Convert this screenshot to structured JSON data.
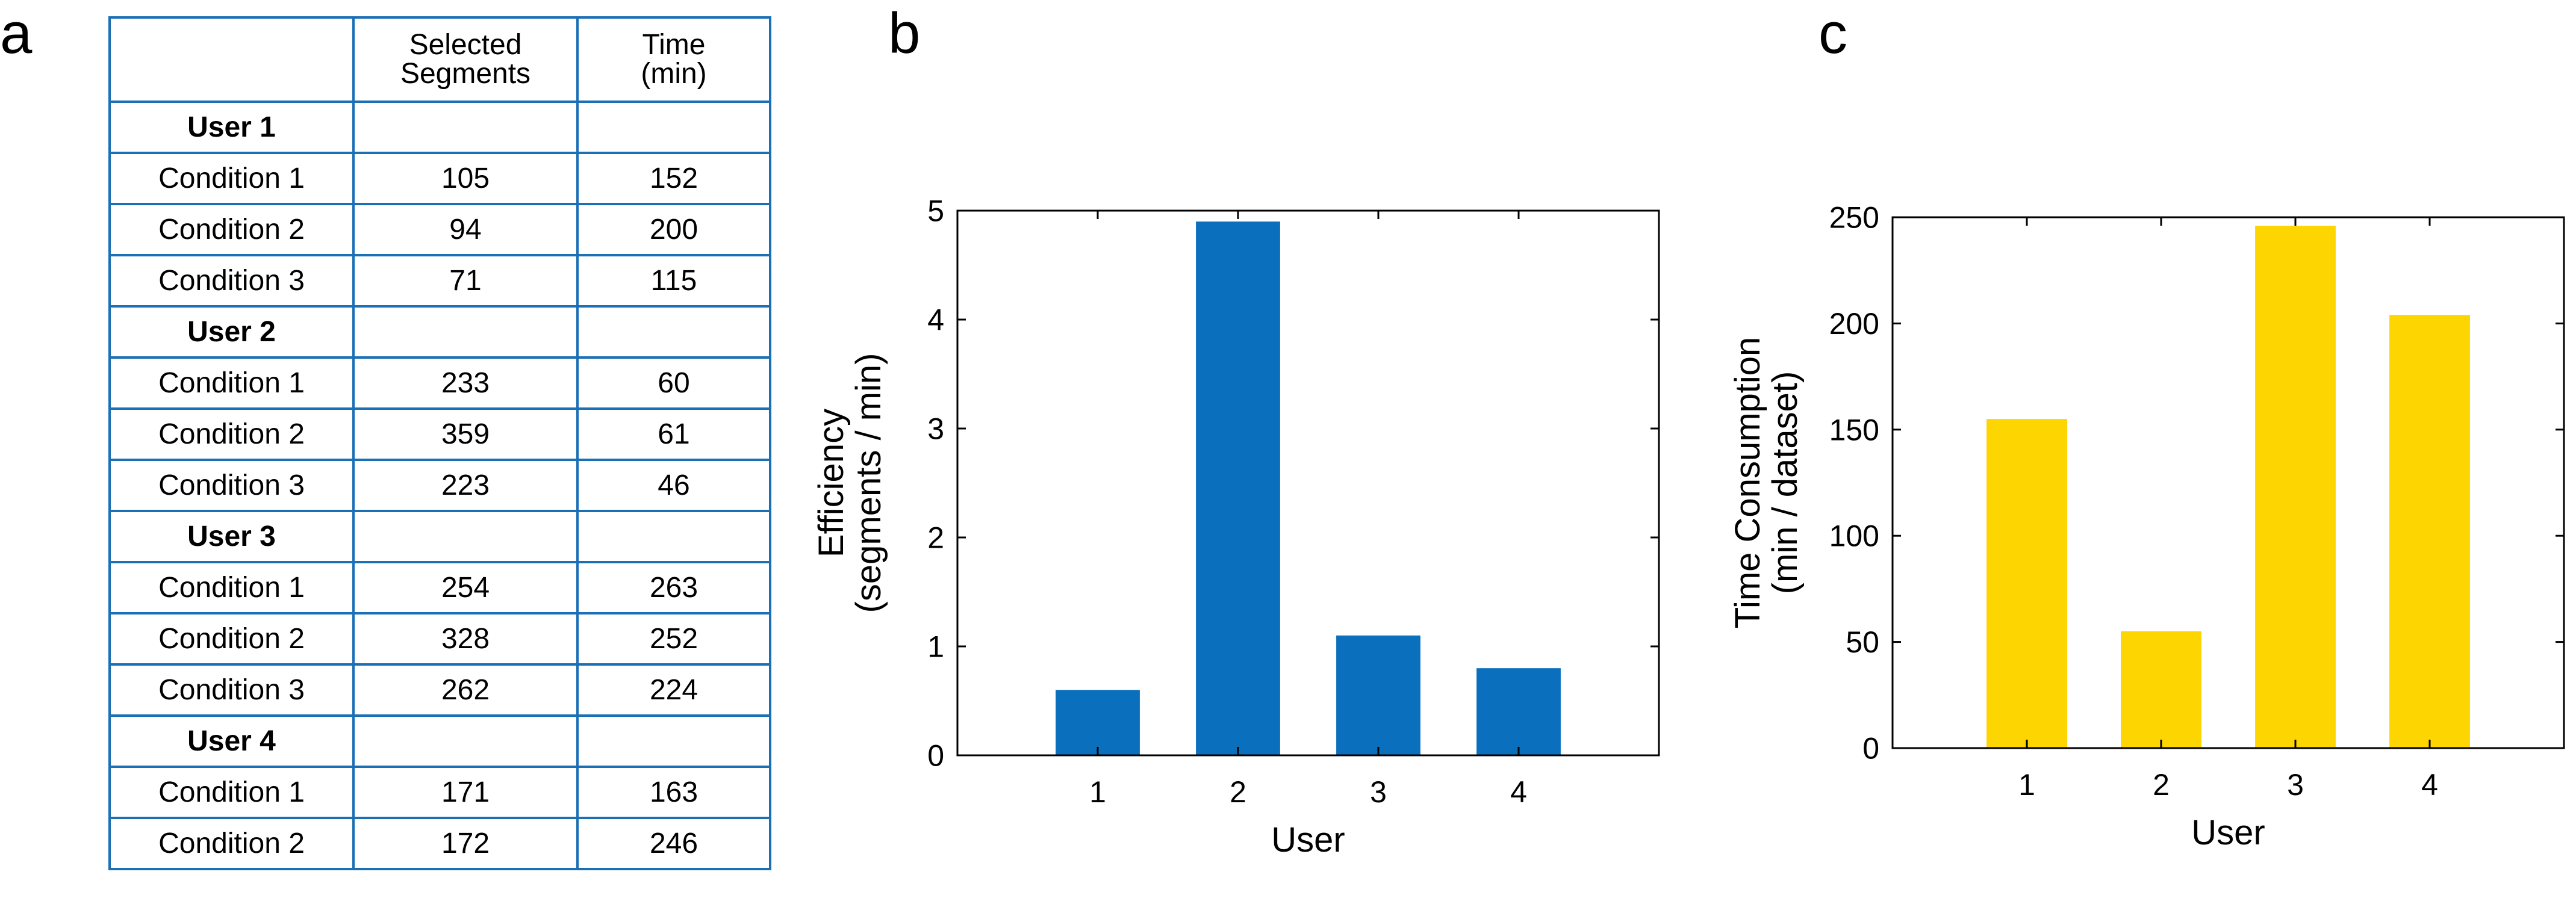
{
  "panels": {
    "a": "a",
    "b": "b",
    "c": "c"
  },
  "colors": {
    "table_border": "#1a6fb5",
    "efficiency_bar": "#0a6fbd",
    "time_bar": "#fdd500"
  },
  "table": {
    "headers": [
      "",
      "Selected\nSegments",
      "Time\n(min)"
    ],
    "rows": [
      {
        "type": "user",
        "cells": [
          "User 1",
          "",
          ""
        ]
      },
      {
        "type": "condition",
        "cells": [
          "Condition 1",
          "105",
          "152"
        ]
      },
      {
        "type": "condition",
        "cells": [
          "Condition 2",
          "94",
          "200"
        ]
      },
      {
        "type": "condition",
        "cells": [
          "Condition 3",
          "71",
          "115"
        ]
      },
      {
        "type": "user",
        "cells": [
          "User 2",
          "",
          ""
        ]
      },
      {
        "type": "condition",
        "cells": [
          "Condition 1",
          "233",
          "60"
        ]
      },
      {
        "type": "condition",
        "cells": [
          "Condition 2",
          "359",
          "61"
        ]
      },
      {
        "type": "condition",
        "cells": [
          "Condition 3",
          "223",
          "46"
        ]
      },
      {
        "type": "user",
        "cells": [
          "User 3",
          "",
          ""
        ]
      },
      {
        "type": "condition",
        "cells": [
          "Condition 1",
          "254",
          "263"
        ]
      },
      {
        "type": "condition",
        "cells": [
          "Condition 2",
          "328",
          "252"
        ]
      },
      {
        "type": "condition",
        "cells": [
          "Condition 3",
          "262",
          "224"
        ]
      },
      {
        "type": "user",
        "cells": [
          "User 4",
          "",
          ""
        ]
      },
      {
        "type": "condition",
        "cells": [
          "Condition 1",
          "171",
          "163"
        ]
      },
      {
        "type": "condition",
        "cells": [
          "Condition 2",
          "172",
          "246"
        ]
      }
    ]
  },
  "chart_data": [
    {
      "type": "table",
      "columns": [
        "",
        "Selected Segments",
        "Time (min)"
      ],
      "rows": [
        [
          "User 1",
          "",
          ""
        ],
        [
          "Condition 1",
          105,
          152
        ],
        [
          "Condition 2",
          94,
          200
        ],
        [
          "Condition 3",
          71,
          115
        ],
        [
          "User 2",
          "",
          ""
        ],
        [
          "Condition 1",
          233,
          60
        ],
        [
          "Condition 2",
          359,
          61
        ],
        [
          "Condition 3",
          223,
          46
        ],
        [
          "User 3",
          "",
          ""
        ],
        [
          "Condition 1",
          254,
          263
        ],
        [
          "Condition 2",
          328,
          252
        ],
        [
          "Condition 3",
          262,
          224
        ],
        [
          "User 4",
          "",
          ""
        ],
        [
          "Condition 1",
          171,
          163
        ],
        [
          "Condition 2",
          172,
          246
        ]
      ]
    },
    {
      "type": "bar",
      "categories": [
        "1",
        "2",
        "3",
        "4"
      ],
      "values": [
        0.6,
        4.9,
        1.1,
        0.8
      ],
      "xlabel": "User",
      "ylabel": [
        "Efficiency",
        "(segments / min)"
      ],
      "ylim": [
        0,
        5
      ],
      "xlim": [
        0,
        5
      ],
      "yticks": [
        0,
        1,
        2,
        3,
        4,
        5
      ],
      "grid": false,
      "color": "#0a6fbd"
    },
    {
      "type": "bar",
      "categories": [
        "1",
        "2",
        "3",
        "4"
      ],
      "values": [
        155,
        55,
        246,
        204
      ],
      "xlabel": "User",
      "ylabel": [
        "Time Consumption",
        "(min / dataset)"
      ],
      "ylim": [
        0,
        250
      ],
      "xlim": [
        0,
        5
      ],
      "yticks": [
        0,
        50,
        100,
        150,
        200,
        250
      ],
      "grid": false,
      "color": "#fdd500"
    }
  ]
}
